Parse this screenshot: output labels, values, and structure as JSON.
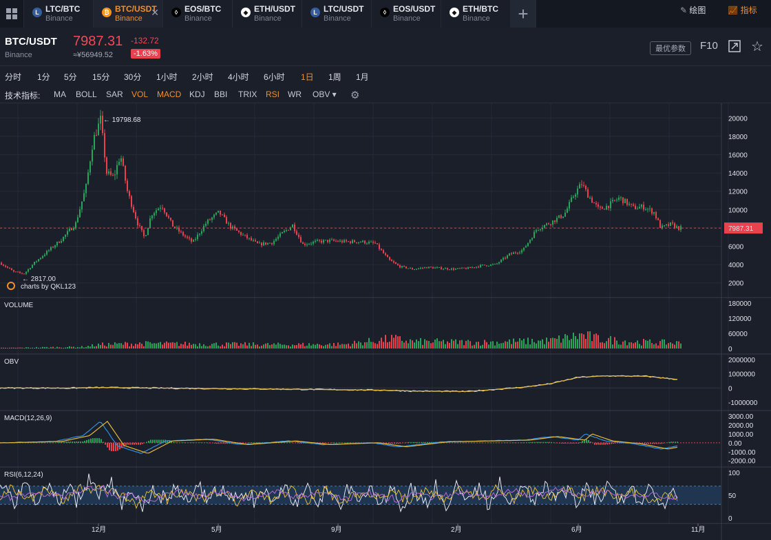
{
  "tabs": [
    {
      "pair": "LTC/BTC",
      "exchange": "Binance",
      "coin": "L",
      "coin_color": "#345d9d"
    },
    {
      "pair": "BTC/USDT",
      "exchange": "Binance",
      "coin": "₿",
      "coin_color": "#f7931a",
      "active": true,
      "close": "✕"
    },
    {
      "pair": "EOS/BTC",
      "exchange": "Binance",
      "coin": "◊",
      "coin_color": "#000000"
    },
    {
      "pair": "ETH/USDT",
      "exchange": "Binance",
      "coin": "◆",
      "coin_color": "#ffffff"
    },
    {
      "pair": "LTC/USDT",
      "exchange": "Binance",
      "coin": "L",
      "coin_color": "#345d9d"
    },
    {
      "pair": "EOS/USDT",
      "exchange": "Binance",
      "coin": "◊",
      "coin_color": "#000000"
    },
    {
      "pair": "ETH/BTC",
      "exchange": "Binance",
      "coin": "◆",
      "coin_color": "#ffffff"
    }
  ],
  "add_tab": "+",
  "header": {
    "symbol": "BTC/USDT",
    "exchange": "Binance",
    "price": "7987.31",
    "cny": "≈¥56949.52",
    "change": "-132.72",
    "change_pct": "-1.63%",
    "best_params": "最优参数",
    "f10": "F10",
    "star": "☆"
  },
  "periods": [
    "分时",
    "1分",
    "5分",
    "15分",
    "30分",
    "1小时",
    "2小时",
    "4小时",
    "6小时",
    "1日",
    "1周",
    "1月"
  ],
  "selected_period": "1日",
  "draw_label": "绘图",
  "indicator_label": "指标",
  "indicators": {
    "label": "技术指标:",
    "items": [
      "MA",
      "BOLL",
      "SAR",
      "VOL",
      "MACD",
      "KDJ",
      "BBI",
      "TRIX",
      "RSI",
      "WR",
      "OBV ▾"
    ],
    "active": [
      "VOL",
      "MACD",
      "RSI"
    ]
  },
  "chart_data": {
    "type": "candlestick",
    "x_ticks": [
      "12月",
      "5月",
      "9月",
      "2月",
      "6月",
      "11月"
    ],
    "price_axis": {
      "ticks": [
        "20000",
        "18000",
        "16000",
        "14000",
        "12000",
        "10000",
        "8000",
        "6000",
        "4000",
        "2000"
      ],
      "range": [
        1000,
        21000
      ]
    },
    "current_price": "7987.31",
    "high_label": "19798.68",
    "low_label": "2817.00",
    "watermark": "charts by QKL123",
    "volume": {
      "title": "VOLUME",
      "ticks": [
        "180000",
        "120000",
        "60000",
        "0"
      ],
      "range": [
        0,
        180000
      ]
    },
    "obv": {
      "title": "OBV",
      "ticks": [
        "2000000",
        "1000000",
        "0",
        "-1000000"
      ],
      "range": [
        -1200000,
        2000000
      ]
    },
    "macd": {
      "title": "MACD(12,26,9)",
      "ticks": [
        "3000.00",
        "2000.00",
        "1000.00",
        "0.00",
        "-1000.00",
        "-2000.00"
      ],
      "range": [
        -2100,
        3000
      ]
    },
    "rsi": {
      "title": "RSI(6,12,24)",
      "ticks": [
        "100",
        "50",
        "0"
      ],
      "band": [
        30,
        70
      ],
      "range": [
        0,
        100
      ]
    },
    "price_path": [
      [
        0,
        4200
      ],
      [
        20,
        3200
      ],
      [
        35,
        3000
      ],
      [
        50,
        4200
      ],
      [
        70,
        5500
      ],
      [
        90,
        6800
      ],
      [
        110,
        8500
      ],
      [
        125,
        12500
      ],
      [
        135,
        17500
      ],
      [
        146,
        19798
      ],
      [
        155,
        14000
      ],
      [
        165,
        13500
      ],
      [
        175,
        16000
      ],
      [
        185,
        12000
      ],
      [
        200,
        8500
      ],
      [
        210,
        6900
      ],
      [
        220,
        9500
      ],
      [
        235,
        10500
      ],
      [
        250,
        8300
      ],
      [
        265,
        7300
      ],
      [
        280,
        6400
      ],
      [
        300,
        8600
      ],
      [
        318,
        9700
      ],
      [
        335,
        8100
      ],
      [
        355,
        7100
      ],
      [
        375,
        6200
      ],
      [
        395,
        6400
      ],
      [
        410,
        7400
      ],
      [
        425,
        8300
      ],
      [
        440,
        6200
      ],
      [
        460,
        6500
      ],
      [
        480,
        6600
      ],
      [
        500,
        6500
      ],
      [
        525,
        6500
      ],
      [
        545,
        6300
      ],
      [
        565,
        4500
      ],
      [
        580,
        3800
      ],
      [
        600,
        3500
      ],
      [
        620,
        3700
      ],
      [
        640,
        3600
      ],
      [
        660,
        3500
      ],
      [
        680,
        3600
      ],
      [
        700,
        3900
      ],
      [
        720,
        4000
      ],
      [
        740,
        5100
      ],
      [
        760,
        5600
      ],
      [
        780,
        7900
      ],
      [
        800,
        8600
      ],
      [
        820,
        9500
      ],
      [
        835,
        11800
      ],
      [
        845,
        12800
      ],
      [
        855,
        11500
      ],
      [
        870,
        10000
      ],
      [
        885,
        10500
      ],
      [
        900,
        11300
      ],
      [
        920,
        10200
      ],
      [
        935,
        10300
      ],
      [
        950,
        9700
      ],
      [
        960,
        8000
      ],
      [
        975,
        8400
      ],
      [
        985,
        7987
      ]
    ],
    "volume_path": [
      [
        0,
        2000
      ],
      [
        60,
        4000
      ],
      [
        120,
        6000
      ],
      [
        146,
        14000
      ],
      [
        200,
        18000
      ],
      [
        300,
        16000
      ],
      [
        400,
        14000
      ],
      [
        500,
        15000
      ],
      [
        525,
        22000
      ],
      [
        570,
        35000
      ],
      [
        600,
        25000
      ],
      [
        700,
        22000
      ],
      [
        800,
        28000
      ],
      [
        845,
        48000
      ],
      [
        870,
        34000
      ],
      [
        920,
        24000
      ],
      [
        985,
        20000
      ]
    ],
    "obv_path": [
      [
        0,
        0
      ],
      [
        100,
        -10000
      ],
      [
        146,
        30000
      ],
      [
        300,
        -40000
      ],
      [
        450,
        -100000
      ],
      [
        560,
        -160000
      ],
      [
        600,
        -220000
      ],
      [
        680,
        -250000
      ],
      [
        760,
        50000
      ],
      [
        800,
        300000
      ],
      [
        840,
        750000
      ],
      [
        880,
        850000
      ],
      [
        940,
        820000
      ],
      [
        985,
        600000
      ]
    ],
    "macd_path": [
      [
        0,
        0
      ],
      [
        80,
        150
      ],
      [
        120,
        800
      ],
      [
        146,
        2400
      ],
      [
        170,
        -300
      ],
      [
        205,
        -1200
      ],
      [
        240,
        200
      ],
      [
        300,
        400
      ],
      [
        350,
        -200
      ],
      [
        420,
        200
      ],
      [
        470,
        -200
      ],
      [
        540,
        0
      ],
      [
        580,
        -450
      ],
      [
        640,
        100
      ],
      [
        700,
        200
      ],
      [
        760,
        300
      ],
      [
        800,
        700
      ],
      [
        840,
        300
      ],
      [
        850,
        1000
      ],
      [
        880,
        200
      ],
      [
        920,
        -100
      ],
      [
        960,
        -700
      ],
      [
        985,
        -350
      ]
    ]
  }
}
